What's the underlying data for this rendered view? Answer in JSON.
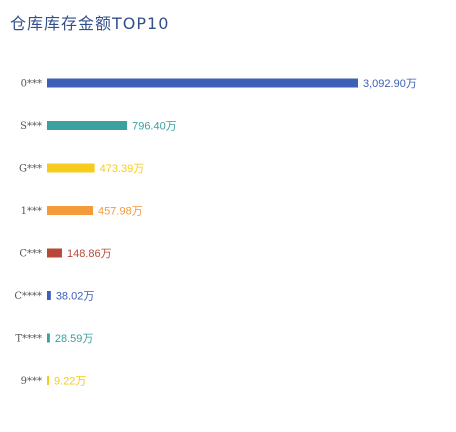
{
  "chart_data": {
    "type": "bar",
    "orientation": "horizontal",
    "title": "仓库库存金额TOP10",
    "categories": [
      "0***",
      "S***",
      "G***",
      "1***",
      "C***",
      "C****",
      "T****",
      "9***"
    ],
    "values": [
      3092.9,
      796.4,
      473.39,
      457.98,
      148.86,
      38.02,
      28.59,
      9.22
    ],
    "value_labels": [
      "3,092.90万",
      "796.40万",
      "473.39万",
      "457.98万",
      "148.86万",
      "38.02万",
      "28.59万",
      "9.22万"
    ],
    "colors": [
      "#3d5fb5",
      "#3aa0a0",
      "#f7cb1c",
      "#f39a3b",
      "#b8493a",
      "#3d5fb5",
      "#3aa0a0",
      "#f7cb1c"
    ],
    "xlabel": "",
    "ylabel": "",
    "grid": false,
    "legend": "none"
  }
}
